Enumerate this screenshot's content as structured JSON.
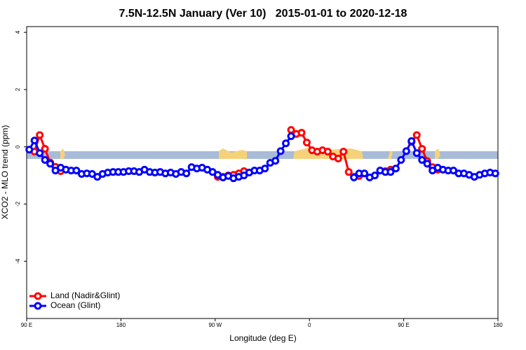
{
  "chart_data": {
    "type": "line",
    "title": "7.5N-12.5N January (Ver 10)   2015-01-01 to 2020-12-18",
    "x_label": "Longitude (deg E)",
    "y_label": "XCO2 - MLO trend (ppm)",
    "x": [
      92.5,
      97.5,
      102.5,
      107.5,
      112.5,
      117.5,
      122.5,
      127.5,
      132.5,
      137.5,
      142.5,
      147.5,
      152.5,
      157.5,
      162.5,
      167.5,
      172.5,
      177.5,
      182.5,
      187.5,
      192.5,
      197.5,
      202.5,
      207.5,
      212.5,
      217.5,
      222.5,
      227.5,
      232.5,
      237.5,
      242.5,
      247.5,
      252.5,
      257.5,
      262.5,
      267.5,
      272.5,
      277.5,
      282.5,
      287.5,
      292.5,
      297.5,
      302.5,
      307.5,
      312.5,
      317.5,
      322.5,
      327.5,
      332.5,
      337.5,
      342.5,
      347.5,
      352.5,
      357.5,
      362.5,
      367.5,
      372.5,
      377.5,
      382.5,
      387.5,
      392.5,
      397.5,
      402.5,
      407.5,
      412.5,
      417.5,
      422.5,
      427.5,
      432.5,
      437.5,
      442.5,
      447.5,
      452.5,
      457.5,
      462.5,
      467.5,
      472.5,
      477.5,
      482.5,
      487.5,
      492.5,
      497.5,
      502.5,
      507.5,
      512.5,
      517.5,
      522.5,
      527.5,
      532.5,
      537.5
    ],
    "series": [
      {
        "name": "Land (Nadir&Glint)",
        "color": "#ff0000",
        "values": [
          null,
          -0.17,
          0.41,
          -0.07,
          -0.55,
          -0.7,
          -0.85,
          null,
          null,
          null,
          null,
          null,
          null,
          null,
          null,
          null,
          null,
          null,
          null,
          null,
          null,
          null,
          null,
          null,
          null,
          null,
          null,
          null,
          null,
          null,
          null,
          null,
          null,
          null,
          null,
          null,
          -1.05,
          -1.05,
          -1.0,
          -0.98,
          -0.93,
          -0.85,
          null,
          null,
          null,
          null,
          null,
          null,
          null,
          null,
          0.59,
          0.45,
          0.49,
          0.15,
          -0.12,
          -0.17,
          -0.12,
          -0.17,
          -0.34,
          -0.41,
          -0.17,
          -0.88,
          -1.05,
          -1.02,
          null,
          null,
          null,
          null,
          -0.85,
          -0.8,
          null,
          null,
          null,
          0.17,
          0.41,
          -0.07,
          -0.5,
          -0.71,
          -0.8,
          null,
          null,
          null,
          null,
          null,
          null,
          null,
          null,
          null,
          null,
          null
        ]
      },
      {
        "name": "Ocean (Glint)",
        "color": "#0000ff",
        "values": [
          -0.1,
          0.22,
          -0.22,
          -0.46,
          -0.59,
          -0.83,
          -0.73,
          -0.8,
          -0.83,
          -0.83,
          -0.95,
          -0.93,
          -0.95,
          -1.05,
          -0.95,
          -0.9,
          -0.88,
          -0.88,
          -0.88,
          -0.85,
          -0.85,
          -0.88,
          -0.8,
          -0.88,
          -0.9,
          -0.88,
          -0.93,
          -0.9,
          -0.95,
          -0.88,
          -0.93,
          -0.71,
          -0.76,
          -0.73,
          -0.8,
          -0.88,
          -0.98,
          -1.07,
          -1.02,
          -1.1,
          -1.05,
          -1.0,
          -0.9,
          -0.83,
          -0.83,
          -0.76,
          -0.56,
          -0.49,
          -0.15,
          0.12,
          0.37,
          null,
          null,
          null,
          null,
          null,
          null,
          null,
          null,
          null,
          null,
          null,
          -1.07,
          -0.93,
          -0.93,
          -1.07,
          -1.0,
          -0.83,
          -0.88,
          -0.88,
          -0.76,
          -0.46,
          -0.15,
          0.2,
          -0.22,
          -0.46,
          -0.59,
          -0.83,
          -0.73,
          -0.8,
          -0.83,
          -0.83,
          -0.93,
          -0.93,
          -0.98,
          -1.05,
          -0.98,
          -0.93,
          -0.9,
          -0.93
        ]
      }
    ],
    "xlim": [
      90,
      540
    ],
    "xticks": [
      {
        "value": 90,
        "label": "90 E"
      },
      180,
      {
        "value": 270,
        "label": "90 W"
      },
      {
        "value": 360,
        "label": "0"
      },
      {
        "value": 450,
        "label": "90 E"
      },
      {
        "value": 540,
        "label": "180"
      }
    ],
    "ylim": [
      -6,
      4.2
    ],
    "yticks": [
      -4,
      -2,
      0,
      2,
      4
    ],
    "legend": "bottom-left"
  }
}
